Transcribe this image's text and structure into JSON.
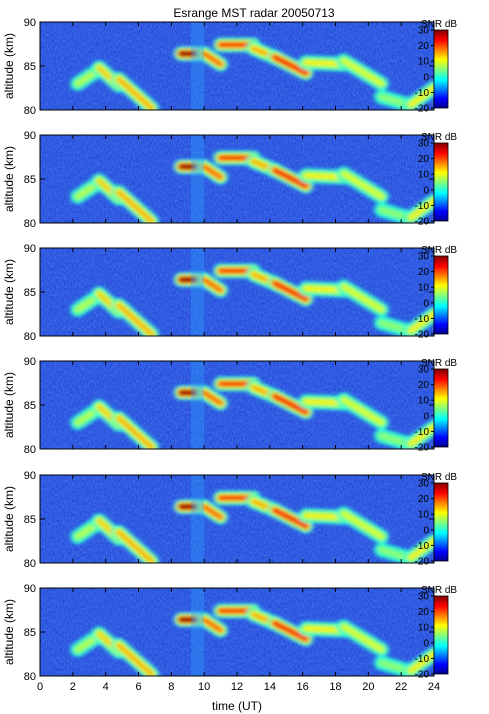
{
  "chart_data": {
    "type": "heatmap",
    "title": "Esrange MST radar 20050713",
    "xlabel": "time (UT)",
    "x_ticks": [
      0,
      2,
      4,
      6,
      8,
      10,
      12,
      14,
      16,
      18,
      20,
      22,
      24
    ],
    "xlim": [
      0,
      24
    ],
    "colorbar_ticks": [
      30,
      20,
      10,
      0,
      -10,
      -20
    ],
    "colorbar_range": [
      -20,
      30
    ],
    "panels": [
      {
        "ylabel": "altitude (km)",
        "y_ticks": [
          90,
          85,
          80
        ],
        "ylim": [
          80,
          90
        ],
        "colorbar_label": "SNR dB"
      },
      {
        "ylabel": "altitude (km)",
        "y_ticks": [
          90,
          85,
          80
        ],
        "ylim": [
          80,
          90
        ],
        "colorbar_label": "SNR dB"
      },
      {
        "ylabel": "altitude (km)",
        "y_ticks": [
          90,
          85,
          80
        ],
        "ylim": [
          80,
          90
        ],
        "colorbar_label": "SNR dB"
      },
      {
        "ylabel": "altitude (km)",
        "y_ticks": [
          90,
          85,
          80
        ],
        "ylim": [
          80,
          90
        ],
        "colorbar_label": "SNR dB"
      },
      {
        "ylabel": "altitude (km)",
        "y_ticks": [
          90,
          85,
          80
        ],
        "ylim": [
          80,
          90
        ],
        "colorbar_label": "SNR dB"
      },
      {
        "ylabel": "altitude (km)",
        "y_ticks": [
          90,
          85,
          80
        ],
        "ylim": [
          80,
          90
        ],
        "colorbar_label": "SNR dB"
      }
    ],
    "echo_features": [
      {
        "t0": 2.3,
        "t1": 3.6,
        "a0": 83.0,
        "a1": 84.6,
        "snr": 8
      },
      {
        "t0": 3.6,
        "t1": 4.8,
        "a0": 84.8,
        "a1": 82.8,
        "snr": 14
      },
      {
        "t0": 4.8,
        "t1": 6.8,
        "a0": 83.5,
        "a1": 80.2,
        "snr": 16
      },
      {
        "t0": 8.6,
        "t1": 10.0,
        "a0": 86.4,
        "a1": 86.4,
        "snr": 30
      },
      {
        "t0": 10.0,
        "t1": 11.0,
        "a0": 86.4,
        "a1": 85.2,
        "snr": 20
      },
      {
        "t0": 11.0,
        "t1": 13.0,
        "a0": 87.4,
        "a1": 87.4,
        "snr": 22
      },
      {
        "t0": 13.0,
        "t1": 14.3,
        "a0": 87.0,
        "a1": 86.0,
        "snr": 16
      },
      {
        "t0": 14.3,
        "t1": 16.2,
        "a0": 86.0,
        "a1": 84.2,
        "snr": 24
      },
      {
        "t0": 16.2,
        "t1": 18.5,
        "a0": 85.4,
        "a1": 85.2,
        "snr": 12
      },
      {
        "t0": 18.5,
        "t1": 20.8,
        "a0": 85.6,
        "a1": 83.0,
        "snr": 10
      },
      {
        "t0": 20.8,
        "t1": 22.4,
        "a0": 81.5,
        "a1": 80.6,
        "snr": 6
      },
      {
        "t0": 22.6,
        "t1": 24.0,
        "a0": 80.6,
        "a1": 82.5,
        "snr": 12
      }
    ],
    "grid": false,
    "colormap": "jet"
  }
}
